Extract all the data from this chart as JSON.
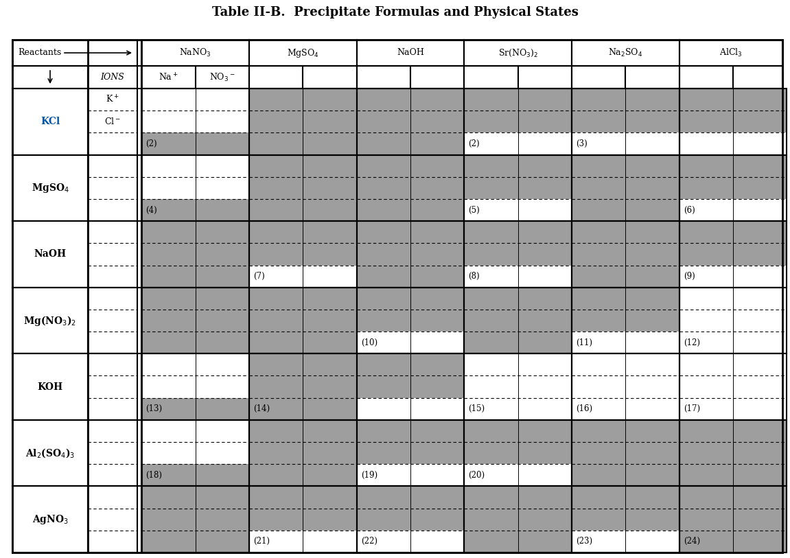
{
  "title": "Table II-B.  Precipitate Formulas and Physical States",
  "col_headers": [
    "NaNO₃",
    "MgSO₄",
    "NaOH",
    "Sr(NO₃)₂",
    "Na₂SO₄",
    "AlCl₃"
  ],
  "row_labels": [
    "KCl",
    "MgSO₄",
    "NaOH",
    "Mg(NO₃)₂",
    "KOH",
    "Al₂(SO₄)₃",
    "AgNO₃"
  ],
  "row_label_color": [
    "#0055aa",
    "#000000",
    "#000000",
    "#000000",
    "#000000",
    "#000000",
    "#000000"
  ],
  "row_ions": [
    [
      "K⁺",
      "Cl⁻"
    ],
    [
      "",
      ""
    ],
    [
      "",
      ""
    ],
    [
      "",
      ""
    ],
    [
      "",
      ""
    ],
    [
      "",
      ""
    ],
    [
      "",
      ""
    ]
  ],
  "gray_color": "#9e9e9e",
  "background_color": "#ffffff",
  "gray_map": [
    {
      "0": [
        2
      ],
      "1": [
        0,
        1,
        2
      ],
      "2": [
        0,
        1,
        2
      ],
      "3": [
        0,
        1
      ],
      "4": [
        0,
        1
      ],
      "5": [
        0,
        1
      ]
    },
    {
      "0": [
        2
      ],
      "1": [
        0,
        1,
        2
      ],
      "2": [
        0,
        1,
        2
      ],
      "3": [
        0,
        1
      ],
      "4": [
        0,
        1,
        2
      ],
      "5": [
        0,
        1
      ]
    },
    {
      "0": [
        0,
        1,
        2
      ],
      "1": [
        0,
        1
      ],
      "2": [
        0,
        1,
        2
      ],
      "3": [
        0,
        1
      ],
      "4": [
        0,
        1,
        2
      ],
      "5": [
        0,
        1
      ]
    },
    {
      "0": [
        0,
        1,
        2
      ],
      "1": [
        0,
        1,
        2
      ],
      "2": [
        0,
        1
      ],
      "3": [
        0,
        1,
        2
      ],
      "4": [
        0,
        1
      ],
      "5": []
    },
    {
      "0": [
        2
      ],
      "1": [
        0,
        1,
        2
      ],
      "2": [
        0,
        1
      ],
      "3": [],
      "4": [],
      "5": []
    },
    {
      "0": [
        2
      ],
      "1": [
        0,
        1,
        2
      ],
      "2": [
        0,
        1
      ],
      "3": [
        0,
        1
      ],
      "4": [
        0,
        1,
        2
      ],
      "5": [
        0,
        1,
        2
      ]
    },
    {
      "0": [
        0,
        1,
        2
      ],
      "1": [
        0,
        1
      ],
      "2": [
        0,
        1
      ],
      "3": [
        0,
        1,
        2
      ],
      "4": [
        0,
        1
      ],
      "5": [
        0,
        1,
        2
      ]
    }
  ],
  "number_map": [
    {
      "0": "(2)",
      "1": "",
      "2": "",
      "3": "(2)",
      "4": "(3)",
      "5": ""
    },
    {
      "0": "(4)",
      "1": "",
      "2": "",
      "3": "(5)",
      "4": "",
      "5": "(6)"
    },
    {
      "0": "",
      "1": "(7)",
      "2": "",
      "3": "(8)",
      "4": "",
      "5": "(9)"
    },
    {
      "0": "",
      "1": "",
      "2": "(10)",
      "3": "",
      "4": "(11)",
      "5": "(12)"
    },
    {
      "0": "(13)",
      "1": "(14)",
      "2": "",
      "3": "(15)",
      "4": "(16)",
      "5": "(17)"
    },
    {
      "0": "(18)",
      "1": "",
      "2": "(19)",
      "3": "(20)",
      "4": "",
      "5": ""
    },
    {
      "0": "",
      "1": "(21)",
      "2": "(22)",
      "3": "",
      "4": "(23)",
      "5": "(24)"
    }
  ]
}
